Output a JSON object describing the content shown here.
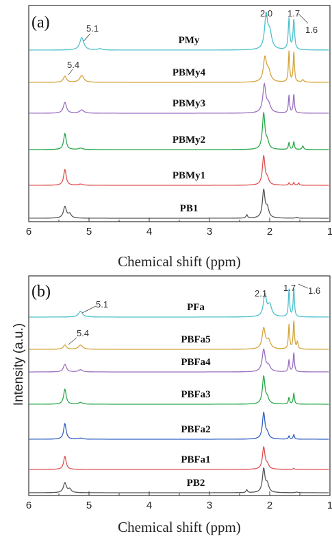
{
  "chart_data": [
    {
      "type": "line",
      "panel_label": "(a)",
      "xlabel": "Chemical shift (ppm)",
      "xlim": [
        6,
        1
      ],
      "x_reversed": true,
      "xticks": [
        "6",
        "5",
        "4",
        "3",
        "2",
        "1"
      ],
      "series": [
        {
          "name": "PMy",
          "color": "#4cc0cc",
          "peaks": [
            [
              5.12,
              0.38,
              0.04
            ],
            [
              4.82,
              0.04,
              0.04
            ],
            [
              2.06,
              1.0,
              0.03
            ],
            [
              2.0,
              0.5,
              0.04
            ],
            [
              1.68,
              0.95,
              0.015
            ],
            [
              1.6,
              0.92,
              0.015
            ]
          ]
        },
        {
          "name": "PBMy4",
          "color": "#d4a33a",
          "peaks": [
            [
              5.4,
              0.2,
              0.03
            ],
            [
              5.12,
              0.22,
              0.04
            ],
            [
              2.08,
              0.75,
              0.03
            ],
            [
              2.02,
              0.35,
              0.04
            ],
            [
              1.68,
              1.0,
              0.012
            ],
            [
              1.6,
              1.0,
              0.012
            ],
            [
              1.45,
              0.08,
              0.02
            ]
          ]
        },
        {
          "name": "PBMy3",
          "color": "#9b6fc0",
          "peaks": [
            [
              5.4,
              0.4,
              0.03
            ],
            [
              5.12,
              0.12,
              0.04
            ],
            [
              2.09,
              1.0,
              0.03
            ],
            [
              2.02,
              0.3,
              0.04
            ],
            [
              1.68,
              0.65,
              0.012
            ],
            [
              1.6,
              0.7,
              0.012
            ]
          ]
        },
        {
          "name": "PBMy2",
          "color": "#2aa84a",
          "peaks": [
            [
              5.4,
              0.45,
              0.025
            ],
            [
              5.14,
              0.04,
              0.04
            ],
            [
              2.1,
              1.0,
              0.025
            ],
            [
              2.04,
              0.2,
              0.03
            ],
            [
              1.68,
              0.2,
              0.012
            ],
            [
              1.6,
              0.22,
              0.012
            ],
            [
              1.45,
              0.1,
              0.015
            ]
          ]
        },
        {
          "name": "PBMy1",
          "color": "#e05050",
          "peaks": [
            [
              5.4,
              0.55,
              0.025
            ],
            [
              5.14,
              0.04,
              0.04
            ],
            [
              2.1,
              1.0,
              0.025
            ],
            [
              2.04,
              0.2,
              0.03
            ],
            [
              1.68,
              0.08,
              0.012
            ],
            [
              1.6,
              0.1,
              0.012
            ],
            [
              1.52,
              0.08,
              0.012
            ]
          ]
        },
        {
          "name": "PB1",
          "color": "#555555",
          "peaks": [
            [
              5.4,
              0.42,
              0.03
            ],
            [
              5.32,
              0.15,
              0.03
            ],
            [
              2.38,
              0.12,
              0.015
            ],
            [
              2.1,
              1.0,
              0.025
            ],
            [
              2.04,
              0.35,
              0.03
            ],
            [
              1.55,
              0.03,
              0.02
            ]
          ]
        }
      ],
      "annotations": [
        {
          "text": "5.1",
          "series": "PMy"
        },
        {
          "text": "2.0",
          "series": "PMy"
        },
        {
          "text": "1.7",
          "series": "PMy"
        },
        {
          "text": "1.6",
          "series": "PMy"
        },
        {
          "text": "5.4",
          "series": "PBMy4"
        }
      ]
    },
    {
      "type": "line",
      "panel_label": "(b)",
      "xlabel": "Chemical shift (ppm)",
      "ylabel": "Intensity (a.u.)",
      "xlim": [
        6,
        1
      ],
      "x_reversed": true,
      "xticks": [
        "6",
        "5",
        "4",
        "3",
        "2",
        "1"
      ],
      "series": [
        {
          "name": "PFa",
          "color": "#4cc0cc",
          "peaks": [
            [
              5.14,
              0.2,
              0.04
            ],
            [
              2.08,
              0.75,
              0.03
            ],
            [
              2.0,
              0.4,
              0.04
            ],
            [
              1.68,
              0.95,
              0.012
            ],
            [
              1.6,
              1.0,
              0.012
            ]
          ]
        },
        {
          "name": "PBFa5",
          "color": "#d4a33a",
          "peaks": [
            [
              5.4,
              0.15,
              0.03
            ],
            [
              5.14,
              0.15,
              0.04
            ],
            [
              2.1,
              0.7,
              0.03
            ],
            [
              2.02,
              0.3,
              0.04
            ],
            [
              1.68,
              0.85,
              0.012
            ],
            [
              1.6,
              1.0,
              0.012
            ],
            [
              1.54,
              0.25,
              0.012
            ]
          ]
        },
        {
          "name": "PBFa4",
          "color": "#9b6fc0",
          "peaks": [
            [
              5.4,
              0.35,
              0.03
            ],
            [
              5.14,
              0.1,
              0.04
            ],
            [
              2.1,
              1.0,
              0.03
            ],
            [
              2.02,
              0.25,
              0.04
            ],
            [
              1.68,
              0.55,
              0.012
            ],
            [
              1.6,
              0.9,
              0.012
            ]
          ]
        },
        {
          "name": "PBFa3",
          "color": "#2aa84a",
          "peaks": [
            [
              5.4,
              0.55,
              0.025
            ],
            [
              5.14,
              0.06,
              0.04
            ],
            [
              2.1,
              1.0,
              0.025
            ],
            [
              2.04,
              0.2,
              0.03
            ],
            [
              1.68,
              0.25,
              0.012
            ],
            [
              1.6,
              0.4,
              0.012
            ]
          ]
        },
        {
          "name": "PBFa2",
          "color": "#3060c0",
          "peaks": [
            [
              5.4,
              0.6,
              0.025
            ],
            [
              5.14,
              0.04,
              0.04
            ],
            [
              2.1,
              1.0,
              0.025
            ],
            [
              2.04,
              0.2,
              0.03
            ],
            [
              1.68,
              0.12,
              0.012
            ],
            [
              1.6,
              0.18,
              0.012
            ]
          ]
        },
        {
          "name": "PBFa1",
          "color": "#e05050",
          "peaks": [
            [
              5.4,
              0.6,
              0.025
            ],
            [
              2.1,
              1.0,
              0.025
            ],
            [
              2.04,
              0.2,
              0.03
            ],
            [
              1.6,
              0.05,
              0.012
            ]
          ]
        },
        {
          "name": "PB2",
          "color": "#555555",
          "peaks": [
            [
              5.4,
              0.42,
              0.03
            ],
            [
              5.32,
              0.15,
              0.03
            ],
            [
              2.38,
              0.12,
              0.015
            ],
            [
              2.1,
              1.0,
              0.025
            ],
            [
              2.04,
              0.35,
              0.03
            ],
            [
              1.55,
              0.03,
              0.02
            ]
          ]
        }
      ],
      "annotations": [
        {
          "text": "5.1",
          "series": "PFa"
        },
        {
          "text": "2.1",
          "series": "PFa"
        },
        {
          "text": "1.7",
          "series": "PFa"
        },
        {
          "text": "1.6",
          "series": "PFa"
        },
        {
          "text": "5.4",
          "series": "PBFa5"
        }
      ]
    }
  ]
}
